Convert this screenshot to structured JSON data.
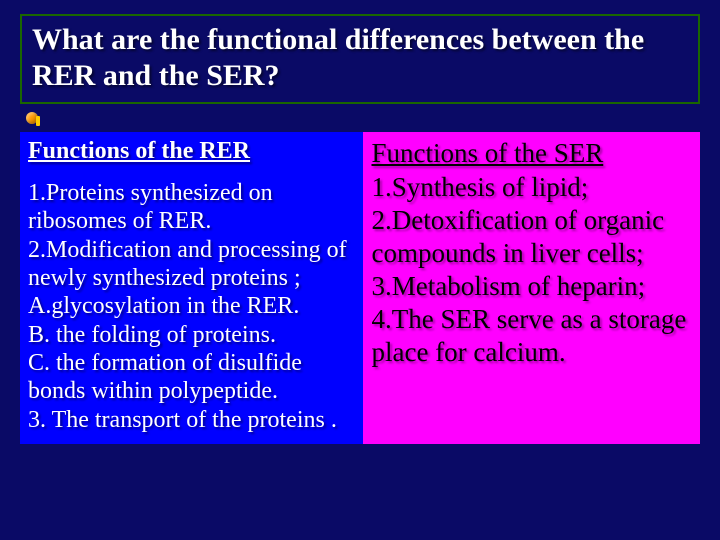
{
  "title": "What are the functional differences between the RER and the SER?",
  "left": {
    "heading": "Functions of the RER",
    "body": "1.Proteins synthesized on ribosomes of RER.\n2.Modification and processing of newly synthesized proteins ;\nA.glycosylation in the RER.\nB. the folding of proteins.\nC. the formation of disulfide bonds within polypeptide.\n3. The transport of the proteins ."
  },
  "right": {
    "heading": "Functions of the SER",
    "body": "1.Synthesis of lipid;\n2.Detoxification of organic compounds in liver cells;\n3.Metabolism of heparin;\n4.The SER serve as a storage place for calcium."
  },
  "colors": {
    "slide_bg": "#0a0a66",
    "left_bg": "#0000ff",
    "right_bg": "#ff00ff",
    "title_border": "#1a6600",
    "bullet": "#ff9900"
  }
}
